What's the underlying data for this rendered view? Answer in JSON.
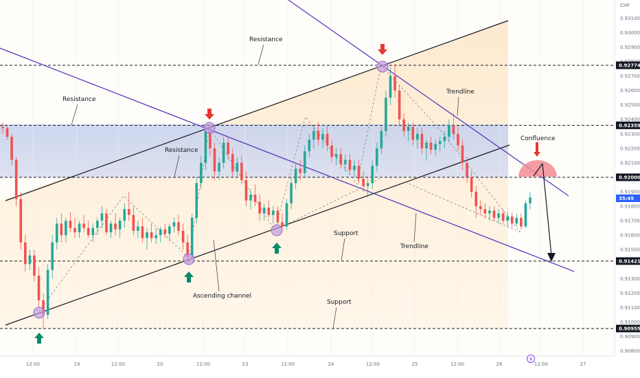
{
  "chart_data": {
    "type": "candlestick",
    "currency": "CHF",
    "current_price_label": "35:45",
    "x_ticks": [
      "12:00",
      "19",
      "12:00",
      "20",
      "12:00",
      "23",
      "12:00",
      "24",
      "12:00",
      "25",
      "12:00",
      "26",
      "12:00",
      "27"
    ],
    "y_ticks": [
      "0.93100",
      "0.93000",
      "0.92900",
      "0.92800",
      "0.92700",
      "0.92600",
      "0.92500",
      "0.92400",
      "0.92300",
      "0.92200",
      "0.92100",
      "0.91900",
      "0.91800",
      "0.91700",
      "0.91600",
      "0.91500",
      "0.91300",
      "0.91200",
      "0.91100",
      "0.91000",
      "0.90900",
      "0.90800"
    ],
    "y_tick_values": [
      0.931,
      0.93,
      0.929,
      0.928,
      0.927,
      0.926,
      0.925,
      0.924,
      0.923,
      0.922,
      0.921,
      0.919,
      0.918,
      0.917,
      0.916,
      0.915,
      0.913,
      0.912,
      0.911,
      0.91,
      0.909,
      0.908
    ],
    "levels": [
      {
        "label": "0.92774",
        "value": 0.92774
      },
      {
        "label": "0.92359",
        "value": 0.92359
      },
      {
        "label": "0.92000",
        "value": 0.92
      },
      {
        "label": "0.91421",
        "value": 0.91421
      },
      {
        "label": "0.90955",
        "value": 0.90955
      }
    ],
    "annotations": [
      "Resistance",
      "Resistance",
      "Resistance",
      "Trendline",
      "Confluence",
      "Support",
      "Trendline",
      "Ascending channel",
      "Support"
    ],
    "colors": {
      "up": "#26a69a",
      "down": "#ef5350",
      "channel": "#131722",
      "trendline": "#5b3fbf",
      "zone": "#c9d5ef",
      "confluence": "#f28b93",
      "arrow_down": "#e53935",
      "arrow_up": "#0a8a6a",
      "marker": "#c39be0"
    },
    "candles": [
      {
        "o": 0.9235,
        "h": 0.9238,
        "l": 0.923,
        "c": 0.9234
      },
      {
        "o": 0.9234,
        "h": 0.9236,
        "l": 0.9226,
        "c": 0.9228
      },
      {
        "o": 0.9228,
        "h": 0.923,
        "l": 0.9208,
        "c": 0.9212
      },
      {
        "o": 0.9212,
        "h": 0.9214,
        "l": 0.918,
        "c": 0.9185
      },
      {
        "o": 0.9185,
        "h": 0.919,
        "l": 0.915,
        "c": 0.9155
      },
      {
        "o": 0.9155,
        "h": 0.916,
        "l": 0.9135,
        "c": 0.914
      },
      {
        "o": 0.914,
        "h": 0.915,
        "l": 0.9136,
        "c": 0.9146
      },
      {
        "o": 0.9146,
        "h": 0.915,
        "l": 0.9128,
        "c": 0.9132
      },
      {
        "o": 0.9132,
        "h": 0.9138,
        "l": 0.911,
        "c": 0.9115
      },
      {
        "o": 0.9115,
        "h": 0.912,
        "l": 0.9095,
        "c": 0.9105
      },
      {
        "o": 0.9105,
        "h": 0.914,
        "l": 0.9102,
        "c": 0.9136
      },
      {
        "o": 0.9136,
        "h": 0.916,
        "l": 0.913,
        "c": 0.9155
      },
      {
        "o": 0.9155,
        "h": 0.9172,
        "l": 0.915,
        "c": 0.9168
      },
      {
        "o": 0.9168,
        "h": 0.9175,
        "l": 0.9155,
        "c": 0.916
      },
      {
        "o": 0.916,
        "h": 0.9172,
        "l": 0.9155,
        "c": 0.917
      },
      {
        "o": 0.917,
        "h": 0.9176,
        "l": 0.9162,
        "c": 0.9165
      },
      {
        "o": 0.9165,
        "h": 0.9172,
        "l": 0.9158,
        "c": 0.9162
      },
      {
        "o": 0.9162,
        "h": 0.917,
        "l": 0.9158,
        "c": 0.9168
      },
      {
        "o": 0.9168,
        "h": 0.9174,
        "l": 0.9162,
        "c": 0.9165
      },
      {
        "o": 0.9165,
        "h": 0.917,
        "l": 0.9158,
        "c": 0.916
      },
      {
        "o": 0.916,
        "h": 0.9168,
        "l": 0.9155,
        "c": 0.9165
      },
      {
        "o": 0.9165,
        "h": 0.9172,
        "l": 0.916,
        "c": 0.917
      },
      {
        "o": 0.917,
        "h": 0.918,
        "l": 0.9165,
        "c": 0.9175
      },
      {
        "o": 0.9175,
        "h": 0.9178,
        "l": 0.916,
        "c": 0.9162
      },
      {
        "o": 0.9162,
        "h": 0.917,
        "l": 0.9158,
        "c": 0.9168
      },
      {
        "o": 0.9168,
        "h": 0.9175,
        "l": 0.916,
        "c": 0.9164
      },
      {
        "o": 0.9164,
        "h": 0.9172,
        "l": 0.9158,
        "c": 0.917
      },
      {
        "o": 0.917,
        "h": 0.9182,
        "l": 0.9165,
        "c": 0.9178
      },
      {
        "o": 0.9178,
        "h": 0.919,
        "l": 0.917,
        "c": 0.9174
      },
      {
        "o": 0.9174,
        "h": 0.918,
        "l": 0.916,
        "c": 0.9163
      },
      {
        "o": 0.9163,
        "h": 0.917,
        "l": 0.9158,
        "c": 0.9166
      },
      {
        "o": 0.9166,
        "h": 0.9172,
        "l": 0.9155,
        "c": 0.9158
      },
      {
        "o": 0.9158,
        "h": 0.9165,
        "l": 0.915,
        "c": 0.9162
      },
      {
        "o": 0.9162,
        "h": 0.9168,
        "l": 0.9155,
        "c": 0.9158
      },
      {
        "o": 0.9158,
        "h": 0.9165,
        "l": 0.9154,
        "c": 0.916
      },
      {
        "o": 0.916,
        "h": 0.9166,
        "l": 0.9155,
        "c": 0.9164
      },
      {
        "o": 0.9164,
        "h": 0.9168,
        "l": 0.9158,
        "c": 0.9161
      },
      {
        "o": 0.9161,
        "h": 0.9168,
        "l": 0.9156,
        "c": 0.9166
      },
      {
        "o": 0.9166,
        "h": 0.9172,
        "l": 0.9162,
        "c": 0.9169
      },
      {
        "o": 0.9169,
        "h": 0.9174,
        "l": 0.916,
        "c": 0.9163
      },
      {
        "o": 0.9163,
        "h": 0.9168,
        "l": 0.915,
        "c": 0.9155
      },
      {
        "o": 0.9155,
        "h": 0.916,
        "l": 0.914,
        "c": 0.9145
      },
      {
        "o": 0.9145,
        "h": 0.9175,
        "l": 0.9143,
        "c": 0.9172
      },
      {
        "o": 0.9172,
        "h": 0.92,
        "l": 0.9168,
        "c": 0.9196
      },
      {
        "o": 0.9196,
        "h": 0.9215,
        "l": 0.9192,
        "c": 0.921
      },
      {
        "o": 0.921,
        "h": 0.9236,
        "l": 0.9205,
        "c": 0.9232
      },
      {
        "o": 0.9232,
        "h": 0.9236,
        "l": 0.9215,
        "c": 0.922
      },
      {
        "o": 0.922,
        "h": 0.9224,
        "l": 0.9198,
        "c": 0.9204
      },
      {
        "o": 0.9204,
        "h": 0.9214,
        "l": 0.9198,
        "c": 0.921
      },
      {
        "o": 0.921,
        "h": 0.9228,
        "l": 0.9206,
        "c": 0.9224
      },
      {
        "o": 0.9224,
        "h": 0.9228,
        "l": 0.9212,
        "c": 0.9216
      },
      {
        "o": 0.9216,
        "h": 0.922,
        "l": 0.92,
        "c": 0.9204
      },
      {
        "o": 0.9204,
        "h": 0.9214,
        "l": 0.92,
        "c": 0.921
      },
      {
        "o": 0.921,
        "h": 0.9215,
        "l": 0.9195,
        "c": 0.9198
      },
      {
        "o": 0.9198,
        "h": 0.9204,
        "l": 0.918,
        "c": 0.9184
      },
      {
        "o": 0.9184,
        "h": 0.9192,
        "l": 0.9178,
        "c": 0.9188
      },
      {
        "o": 0.9188,
        "h": 0.9195,
        "l": 0.918,
        "c": 0.9183
      },
      {
        "o": 0.9183,
        "h": 0.9188,
        "l": 0.917,
        "c": 0.9175
      },
      {
        "o": 0.9175,
        "h": 0.9182,
        "l": 0.917,
        "c": 0.9179
      },
      {
        "o": 0.9179,
        "h": 0.9184,
        "l": 0.9172,
        "c": 0.9174
      },
      {
        "o": 0.9174,
        "h": 0.918,
        "l": 0.9168,
        "c": 0.9177
      },
      {
        "o": 0.9177,
        "h": 0.918,
        "l": 0.9166,
        "c": 0.9169
      },
      {
        "o": 0.9169,
        "h": 0.9175,
        "l": 0.9162,
        "c": 0.9166
      },
      {
        "o": 0.9166,
        "h": 0.9185,
        "l": 0.9164,
        "c": 0.9182
      },
      {
        "o": 0.9182,
        "h": 0.92,
        "l": 0.9178,
        "c": 0.9196
      },
      {
        "o": 0.9196,
        "h": 0.921,
        "l": 0.9192,
        "c": 0.9206
      },
      {
        "o": 0.9206,
        "h": 0.9212,
        "l": 0.9198,
        "c": 0.9203
      },
      {
        "o": 0.9203,
        "h": 0.9222,
        "l": 0.92,
        "c": 0.9218
      },
      {
        "o": 0.9218,
        "h": 0.923,
        "l": 0.9214,
        "c": 0.9226
      },
      {
        "o": 0.9226,
        "h": 0.9236,
        "l": 0.922,
        "c": 0.9232
      },
      {
        "o": 0.9232,
        "h": 0.9238,
        "l": 0.9222,
        "c": 0.9226
      },
      {
        "o": 0.9226,
        "h": 0.9234,
        "l": 0.922,
        "c": 0.923
      },
      {
        "o": 0.923,
        "h": 0.9236,
        "l": 0.9218,
        "c": 0.9222
      },
      {
        "o": 0.9222,
        "h": 0.9226,
        "l": 0.921,
        "c": 0.9214
      },
      {
        "o": 0.9214,
        "h": 0.922,
        "l": 0.9208,
        "c": 0.9216
      },
      {
        "o": 0.9216,
        "h": 0.922,
        "l": 0.9206,
        "c": 0.9209
      },
      {
        "o": 0.9209,
        "h": 0.9216,
        "l": 0.9204,
        "c": 0.9212
      },
      {
        "o": 0.9212,
        "h": 0.9216,
        "l": 0.9202,
        "c": 0.9205
      },
      {
        "o": 0.9205,
        "h": 0.9212,
        "l": 0.92,
        "c": 0.9208
      },
      {
        "o": 0.9208,
        "h": 0.9212,
        "l": 0.9196,
        "c": 0.9199
      },
      {
        "o": 0.9199,
        "h": 0.9204,
        "l": 0.919,
        "c": 0.9194
      },
      {
        "o": 0.9194,
        "h": 0.92,
        "l": 0.9186,
        "c": 0.9196
      },
      {
        "o": 0.9196,
        "h": 0.9212,
        "l": 0.9192,
        "c": 0.9208
      },
      {
        "o": 0.9208,
        "h": 0.9224,
        "l": 0.9204,
        "c": 0.922
      },
      {
        "o": 0.922,
        "h": 0.9236,
        "l": 0.9216,
        "c": 0.9232
      },
      {
        "o": 0.9232,
        "h": 0.926,
        "l": 0.9228,
        "c": 0.9255
      },
      {
        "o": 0.9255,
        "h": 0.9276,
        "l": 0.925,
        "c": 0.927
      },
      {
        "o": 0.927,
        "h": 0.9278,
        "l": 0.9255,
        "c": 0.926
      },
      {
        "o": 0.926,
        "h": 0.9264,
        "l": 0.9236,
        "c": 0.924
      },
      {
        "o": 0.924,
        "h": 0.9244,
        "l": 0.9228,
        "c": 0.9232
      },
      {
        "o": 0.9232,
        "h": 0.9238,
        "l": 0.9225,
        "c": 0.9235
      },
      {
        "o": 0.9235,
        "h": 0.9238,
        "l": 0.9222,
        "c": 0.9226
      },
      {
        "o": 0.9226,
        "h": 0.9234,
        "l": 0.922,
        "c": 0.923
      },
      {
        "o": 0.923,
        "h": 0.9234,
        "l": 0.9216,
        "c": 0.922
      },
      {
        "o": 0.922,
        "h": 0.9226,
        "l": 0.9212,
        "c": 0.9224
      },
      {
        "o": 0.9224,
        "h": 0.9228,
        "l": 0.9216,
        "c": 0.9219
      },
      {
        "o": 0.9219,
        "h": 0.9226,
        "l": 0.9215,
        "c": 0.9223
      },
      {
        "o": 0.9223,
        "h": 0.9228,
        "l": 0.9218,
        "c": 0.9225
      },
      {
        "o": 0.9225,
        "h": 0.9232,
        "l": 0.922,
        "c": 0.9228
      },
      {
        "o": 0.9228,
        "h": 0.924,
        "l": 0.9224,
        "c": 0.9236
      },
      {
        "o": 0.9236,
        "h": 0.9244,
        "l": 0.9226,
        "c": 0.923
      },
      {
        "o": 0.923,
        "h": 0.9236,
        "l": 0.9218,
        "c": 0.9222
      },
      {
        "o": 0.9222,
        "h": 0.9226,
        "l": 0.9205,
        "c": 0.921
      },
      {
        "o": 0.921,
        "h": 0.9214,
        "l": 0.9196,
        "c": 0.92
      },
      {
        "o": 0.92,
        "h": 0.9204,
        "l": 0.9186,
        "c": 0.919
      },
      {
        "o": 0.919,
        "h": 0.9194,
        "l": 0.9172,
        "c": 0.918
      },
      {
        "o": 0.918,
        "h": 0.9184,
        "l": 0.9174,
        "c": 0.9178
      },
      {
        "o": 0.9178,
        "h": 0.9182,
        "l": 0.9172,
        "c": 0.9175
      },
      {
        "o": 0.9175,
        "h": 0.918,
        "l": 0.917,
        "c": 0.9177
      },
      {
        "o": 0.9177,
        "h": 0.918,
        "l": 0.917,
        "c": 0.9172
      },
      {
        "o": 0.9172,
        "h": 0.9178,
        "l": 0.9168,
        "c": 0.9175
      },
      {
        "o": 0.9175,
        "h": 0.9178,
        "l": 0.9168,
        "c": 0.917
      },
      {
        "o": 0.917,
        "h": 0.9176,
        "l": 0.9166,
        "c": 0.9173
      },
      {
        "o": 0.9173,
        "h": 0.9176,
        "l": 0.9165,
        "c": 0.9168
      },
      {
        "o": 0.9168,
        "h": 0.9175,
        "l": 0.9166,
        "c": 0.9172
      },
      {
        "o": 0.9172,
        "h": 0.9175,
        "l": 0.9164,
        "c": 0.9166
      },
      {
        "o": 0.9166,
        "h": 0.9184,
        "l": 0.9165,
        "c": 0.9182
      },
      {
        "o": 0.9182,
        "h": 0.919,
        "l": 0.9178,
        "c": 0.9186
      }
    ]
  }
}
